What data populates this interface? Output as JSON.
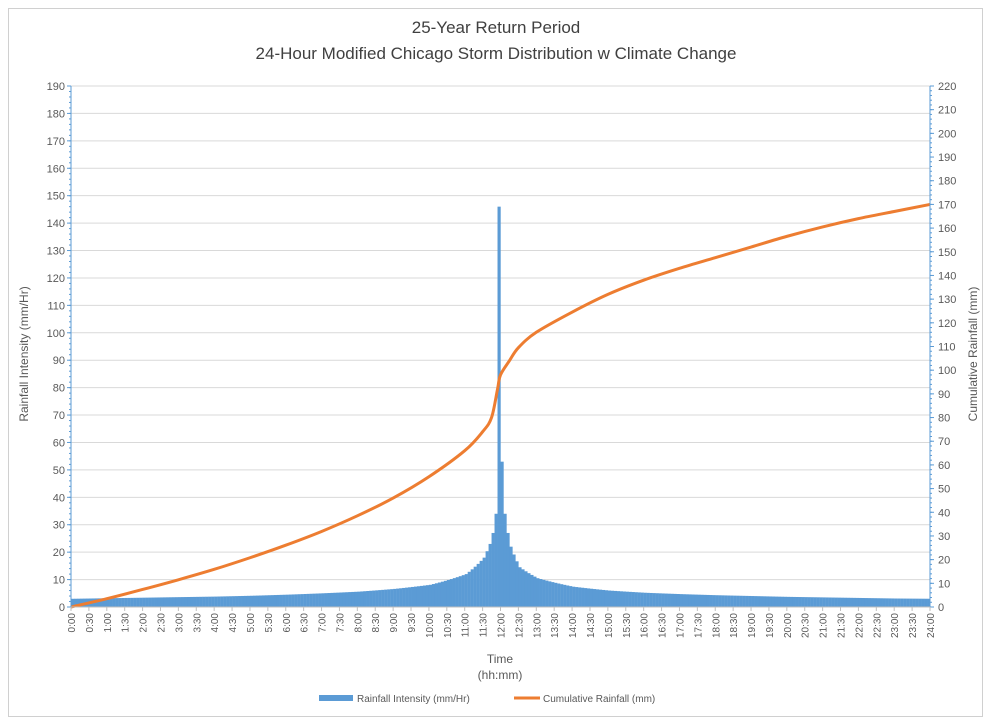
{
  "chart_data": {
    "type": "bar+line",
    "title": "25-Year Return Period",
    "subtitle": "24-Hour Modified Chicago Storm Distribution w Climate Change",
    "xlabel": "Time",
    "xlabel_unit": "(hh:mm)",
    "ylabel_left": "Rainfall Intensity (mm/Hr)",
    "ylabel_right": "Cumulative Rainfall (mm)",
    "ylim_left": [
      0,
      190
    ],
    "ylim_right": [
      0,
      220
    ],
    "yticks_left": [
      "0",
      "10",
      "20",
      "30",
      "40",
      "50",
      "60",
      "70",
      "80",
      "90",
      "100",
      "110",
      "120",
      "130",
      "140",
      "150",
      "160",
      "170",
      "180",
      "190"
    ],
    "yticks_right": [
      "0",
      "10",
      "20",
      "30",
      "40",
      "50",
      "60",
      "70",
      "80",
      "90",
      "100",
      "110",
      "120",
      "130",
      "140",
      "150",
      "160",
      "170",
      "180",
      "190",
      "200",
      "210",
      "220"
    ],
    "xticks": [
      "0:00",
      "0:30",
      "1:00",
      "1:30",
      "2:00",
      "2:30",
      "3:00",
      "3:30",
      "4:00",
      "4:30",
      "5:00",
      "5:30",
      "6:00",
      "6:30",
      "7:00",
      "7:30",
      "8:00",
      "8:30",
      "9:00",
      "9:30",
      "10:00",
      "10:30",
      "11:00",
      "11:30",
      "12:00",
      "12:30",
      "13:00",
      "13:30",
      "14:00",
      "14:30",
      "15:00",
      "15:30",
      "16:00",
      "16:30",
      "17:00",
      "17:30",
      "18:00",
      "18:30",
      "19:00",
      "19:30",
      "20:00",
      "20:30",
      "21:00",
      "21:30",
      "22:00",
      "22:30",
      "23:00",
      "23:30",
      "24:00"
    ],
    "grid": true,
    "legend_position": "bottom",
    "series": [
      {
        "name": "Rainfall Intensity (mm/Hr)",
        "type": "bar",
        "axis": "left",
        "color": "#5b9bd5",
        "interval_minutes": 5,
        "peak_time": "11:55",
        "peak_value": 146,
        "values_sampled_hourly": {
          "0:00": 3.0,
          "1:00": 3.2,
          "2:00": 3.4,
          "3:00": 3.6,
          "4:00": 3.8,
          "5:00": 4.1,
          "6:00": 4.5,
          "7:00": 5.0,
          "8:00": 5.6,
          "9:00": 6.6,
          "10:00": 8.1,
          "11:00": 12.0,
          "11:30": 18.0,
          "11:40": 23.0,
          "11:45": 27.0,
          "11:50": 34.0,
          "11:55": 146.0,
          "12:00": 53.0,
          "12:05": 34.0,
          "12:10": 27.0,
          "12:15": 22.0,
          "12:30": 14.5,
          "13:00": 10.5,
          "14:00": 7.4,
          "15:00": 6.0,
          "16:00": 5.2,
          "17:00": 4.7,
          "18:00": 4.3,
          "19:00": 4.0,
          "20:00": 3.7,
          "21:00": 3.5,
          "22:00": 3.3,
          "23:00": 3.1,
          "24:00": 3.0
        }
      },
      {
        "name": "Cumulative Rainfall (mm)",
        "type": "line",
        "axis": "right",
        "color": "#ed7d31",
        "x": [
          "0:00",
          "1:00",
          "2:00",
          "3:00",
          "4:00",
          "5:00",
          "6:00",
          "7:00",
          "8:00",
          "9:00",
          "10:00",
          "11:00",
          "11:30",
          "11:45",
          "11:55",
          "12:00",
          "12:15",
          "12:30",
          "13:00",
          "14:00",
          "15:00",
          "16:00",
          "17:00",
          "18:00",
          "19:00",
          "20:00",
          "21:00",
          "22:00",
          "23:00",
          "24:00"
        ],
        "y": [
          0,
          3.5,
          7.4,
          11.5,
          15.9,
          20.8,
          26.1,
          31.9,
          38.5,
          46.0,
          55.0,
          66.0,
          74.0,
          80.0,
          92.0,
          98.0,
          104.0,
          109.5,
          116.0,
          124.5,
          132.0,
          138.0,
          143.0,
          147.5,
          152.0,
          156.5,
          160.5,
          164.0,
          167.0,
          170.0
        ]
      }
    ]
  }
}
